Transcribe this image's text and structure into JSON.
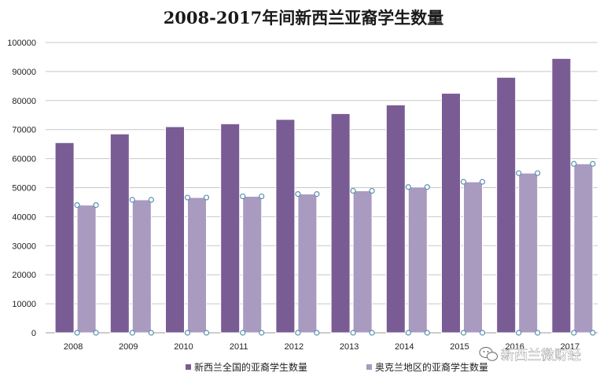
{
  "chart_data": {
    "type": "bar",
    "title": "2008-2017年间新西兰亚裔学生数量",
    "xlabel": "",
    "ylabel": "",
    "categories": [
      "2008",
      "2009",
      "2010",
      "2011",
      "2012",
      "2013",
      "2014",
      "2015",
      "2016",
      "2017"
    ],
    "ylim": [
      0,
      100000
    ],
    "yticks": [
      "0",
      "10000",
      "20000",
      "30000",
      "40000",
      "50000",
      "60000",
      "70000",
      "80000",
      "90000",
      "100000"
    ],
    "grid": true,
    "legend_position": "bottom",
    "series": [
      {
        "name": "新西兰全国的亚裔学生数量",
        "color": "#7a5c95",
        "values": [
          65500,
          68500,
          71000,
          72000,
          73500,
          75500,
          78500,
          82500,
          88000,
          94500
        ]
      },
      {
        "name": "奥克兰地区的亚裔学生数量",
        "color": "#a99abf",
        "values": [
          44000,
          45800,
          46600,
          47000,
          47800,
          48900,
          50200,
          52000,
          55000,
          58200
        ]
      }
    ]
  },
  "watermark": {
    "text": "新西兰微财经",
    "icon": "wechat-icon"
  }
}
